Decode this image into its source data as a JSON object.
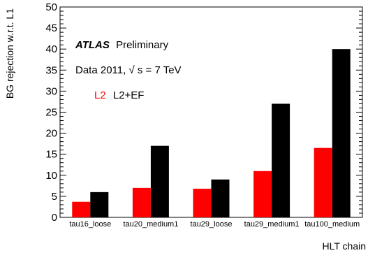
{
  "chart_data": {
    "type": "bar",
    "title": "",
    "xlabel": "HLT chain",
    "ylabel": "BG rejection w.r.t. L1",
    "ylim": [
      0,
      50
    ],
    "yticks": [
      0,
      5,
      10,
      15,
      20,
      25,
      30,
      35,
      40,
      45,
      50
    ],
    "categories": [
      "tau16_loose",
      "tau20_medium1",
      "tau29_loose",
      "tau29_medium1",
      "tau100_medium"
    ],
    "series": [
      {
        "name": "L2",
        "color": "#ff0000",
        "values": [
          3.7,
          7.0,
          6.8,
          11.0,
          16.5
        ]
      },
      {
        "name": "L2+EF",
        "color": "#000000",
        "values": [
          6.0,
          17.0,
          9.0,
          27.0,
          40.0
        ]
      }
    ],
    "legend_position": "top-left",
    "grid": false,
    "annotations": {
      "atlas_label": "ATLAS",
      "atlas_sub": "Preliminary",
      "data_text": "Data 2011,",
      "energy_text": "s = 7 TeV",
      "sqrt_symbol": "√"
    }
  }
}
